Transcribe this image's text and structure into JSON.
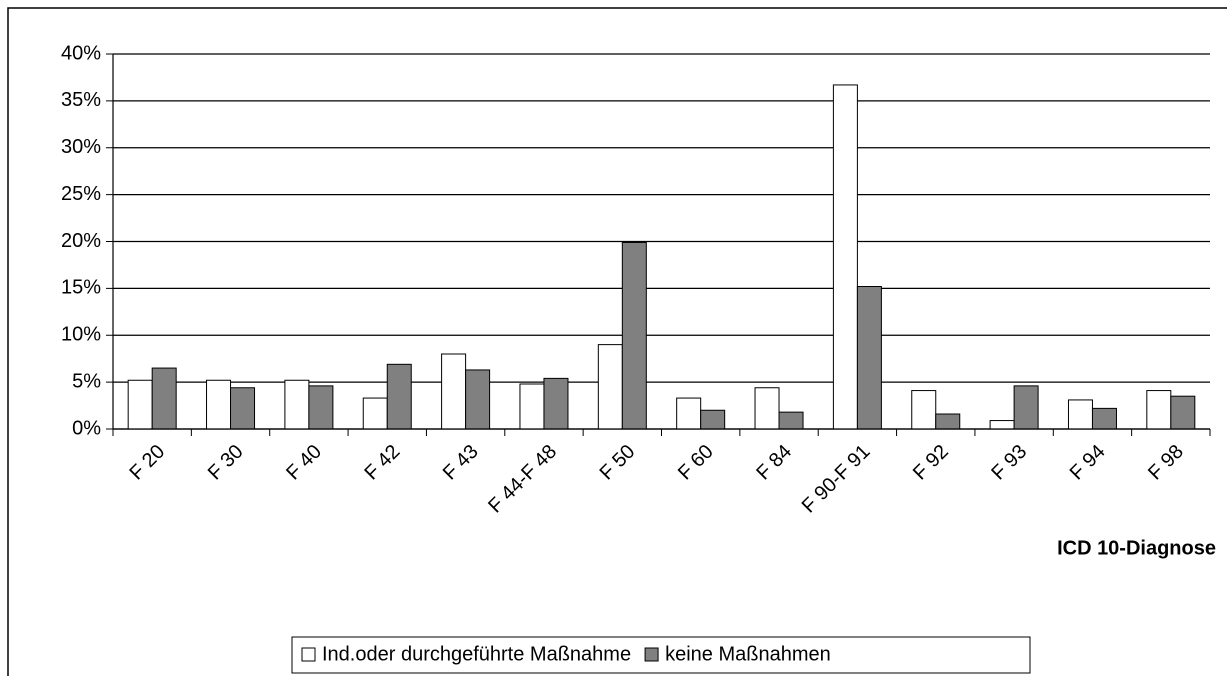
{
  "chart_data": {
    "type": "bar",
    "x_label": "ICD 10-Diagnose",
    "categories": [
      "F 20",
      "F 30",
      "F 40",
      "F 42",
      "F 43",
      "F 44-F 48",
      "F 50",
      "F 60",
      "F 84",
      "F 90-F 91",
      "F 92",
      "F 93",
      "F 94",
      "F 98"
    ],
    "series": [
      {
        "name": "Ind.oder durchgeführte Maßnahme",
        "color": "#ffffff",
        "values": [
          5.2,
          5.2,
          5.2,
          3.3,
          8.0,
          4.8,
          9.0,
          3.3,
          4.4,
          36.7,
          4.1,
          0.9,
          3.1,
          4.1
        ]
      },
      {
        "name": "keine Maßnahmen",
        "color": "#808080",
        "values": [
          6.5,
          4.4,
          4.6,
          6.9,
          6.3,
          5.4,
          19.9,
          2.0,
          1.8,
          15.2,
          1.6,
          4.6,
          2.2,
          3.5
        ]
      }
    ],
    "ylim": [
      0,
      40
    ],
    "yticks": [
      {
        "value": 0,
        "label": "0%"
      },
      {
        "value": 5,
        "label": "5%"
      },
      {
        "value": 10,
        "label": "10%"
      },
      {
        "value": 15,
        "label": "15%"
      },
      {
        "value": 20,
        "label": "20%"
      },
      {
        "value": 25,
        "label": "25%"
      },
      {
        "value": 30,
        "label": "30%"
      },
      {
        "value": 35,
        "label": "35%"
      },
      {
        "value": 40,
        "label": "40%"
      }
    ],
    "grid": true,
    "legend": "bottom"
  }
}
